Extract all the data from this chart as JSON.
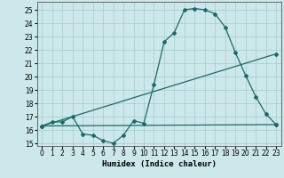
{
  "xlabel": "Humidex (Indice chaleur)",
  "xlim": [
    -0.5,
    23.5
  ],
  "ylim": [
    14.8,
    25.6
  ],
  "yticks": [
    15,
    16,
    17,
    18,
    19,
    20,
    21,
    22,
    23,
    24,
    25
  ],
  "xticks": [
    0,
    1,
    2,
    3,
    4,
    5,
    6,
    7,
    8,
    9,
    10,
    11,
    12,
    13,
    14,
    15,
    16,
    17,
    18,
    19,
    20,
    21,
    22,
    23
  ],
  "bg_color": "#cce8ea",
  "grid_color": "#aacfd2",
  "line_color": "#1a6b6b",
  "curve1_x": [
    0,
    1,
    2,
    3,
    4,
    5,
    6,
    7,
    8,
    9,
    10,
    11,
    12,
    13,
    14,
    15,
    16,
    17,
    18,
    19,
    20,
    21,
    22,
    23
  ],
  "curve1_y": [
    16.3,
    16.6,
    16.6,
    17.0,
    15.7,
    15.6,
    15.2,
    15.0,
    15.6,
    16.7,
    16.5,
    19.4,
    22.6,
    23.3,
    25.0,
    25.1,
    25.0,
    24.7,
    23.7,
    21.8,
    20.1,
    18.5,
    17.2,
    16.4
  ],
  "curve2_x": [
    0,
    23
  ],
  "curve2_y": [
    16.3,
    21.7
  ],
  "curve3_x": [
    0,
    23
  ],
  "curve3_y": [
    16.3,
    16.4
  ],
  "marker_style": "D",
  "marker_size": 2.0,
  "line_width": 0.9,
  "tick_fontsize": 5.5,
  "xlabel_fontsize": 6.5
}
